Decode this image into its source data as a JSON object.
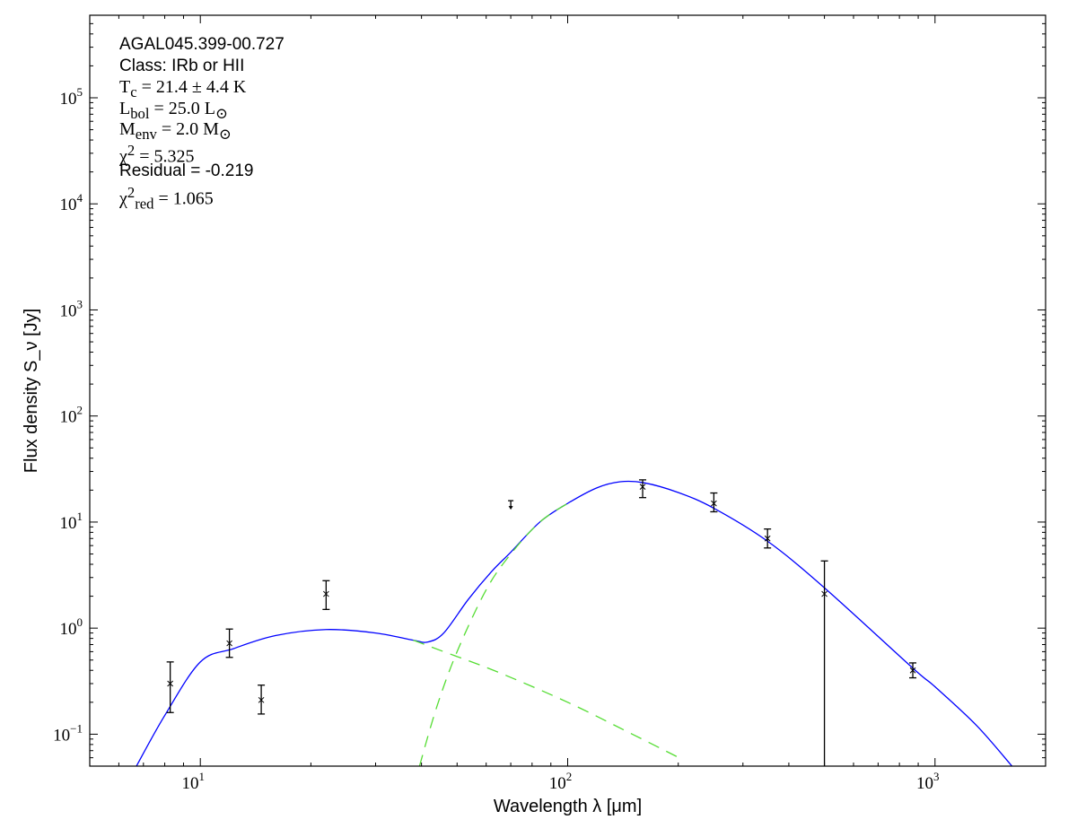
{
  "chart_data": {
    "type": "scatter",
    "xlabel": "Wavelength λ [μm]",
    "ylabel": "Flux density S_ν [Jy]",
    "xscale": "log",
    "yscale": "log",
    "xlim": [
      5,
      2000
    ],
    "ylim": [
      0.05,
      600000
    ],
    "x_ticks": [
      {
        "value": 10,
        "label": "10",
        "exp": "1"
      },
      {
        "value": 100,
        "label": "10",
        "exp": "2"
      },
      {
        "value": 1000,
        "label": "10",
        "exp": "3"
      }
    ],
    "y_ticks": [
      {
        "value": 0.1,
        "label": "10",
        "exp": "−1"
      },
      {
        "value": 1,
        "label": "10",
        "exp": "0"
      },
      {
        "value": 10,
        "label": "10",
        "exp": "1"
      },
      {
        "value": 100,
        "label": "10",
        "exp": "2"
      },
      {
        "value": 1000,
        "label": "10",
        "exp": "3"
      },
      {
        "value": 10000,
        "label": "10",
        "exp": "4"
      },
      {
        "value": 100000,
        "label": "10",
        "exp": "5"
      }
    ],
    "grid": false,
    "annotations": [
      {
        "text": "AGAL045.399-00.727",
        "style": "plain"
      },
      {
        "text": "Class: IRb or HII",
        "style": "plain"
      },
      {
        "text": "T<sub>c</sub> = 21.4 ± 4.4 K",
        "style": "math"
      },
      {
        "text": "L<sub>bol</sub> = 25.0 L<sub>⊙</sub>",
        "style": "math"
      },
      {
        "text": "M<sub>env</sub> = 2.0 M<sub>⊙</sub>",
        "style": "math"
      },
      {
        "text": "χ<sup>2</sup> = 5.325",
        "style": "math"
      },
      {
        "text": "Residual = -0.219",
        "style": "plain"
      },
      {
        "text": "χ<sup>2</sup><sub>red</sub> = 1.065",
        "style": "math"
      }
    ],
    "points": [
      {
        "x": 8.28,
        "y": 0.3,
        "lo": 0.16,
        "hi": 0.48
      },
      {
        "x": 12,
        "y": 0.72,
        "lo": 0.53,
        "hi": 0.98
      },
      {
        "x": 14.65,
        "y": 0.21,
        "lo": 0.155,
        "hi": 0.29
      },
      {
        "x": 22,
        "y": 2.1,
        "lo": 1.5,
        "hi": 2.8
      },
      {
        "x": 160,
        "y": 21.5,
        "lo": 17,
        "hi": 25
      },
      {
        "x": 250,
        "y": 15,
        "lo": 12.5,
        "hi": 18.8
      },
      {
        "x": 350,
        "y": 7,
        "lo": 5.7,
        "hi": 8.6
      },
      {
        "x": 500,
        "y": 2.1,
        "lo": 0.001,
        "hi": 4.3
      },
      {
        "x": 870,
        "y": 0.4,
        "lo": 0.34,
        "hi": 0.47
      }
    ],
    "upper_limits": [
      {
        "x": 70,
        "y": 15
      }
    ],
    "series": [
      {
        "style": "solid",
        "color": "#0000ff",
        "x": [
          6.7,
          8,
          10,
          12.3,
          16,
          22,
          30,
          38,
          41.6,
          46,
          53.6,
          62,
          70,
          84,
          100,
          120,
          139,
          161,
          200,
          250,
          350,
          500,
          870,
          1000,
          1300,
          1620
        ],
        "y": [
          0.05,
          0.15,
          0.48,
          0.64,
          0.85,
          0.97,
          0.9,
          0.77,
          0.74,
          0.9,
          1.86,
          3.4,
          5.2,
          10,
          15,
          21,
          24,
          23.5,
          19,
          13.5,
          6.6,
          2.4,
          0.42,
          0.28,
          0.12,
          0.05
        ]
      },
      {
        "style": "dashed",
        "color": "#55dd33",
        "x": [
          38,
          46,
          64,
          100,
          150,
          203
        ],
        "y": [
          0.77,
          0.6,
          0.39,
          0.2,
          0.1,
          0.059
        ]
      },
      {
        "style": "dashed",
        "color": "#55dd33",
        "x": [
          39.5,
          44,
          50,
          60,
          70,
          84,
          100
        ],
        "y": [
          0.05,
          0.18,
          0.6,
          2.3,
          5.0,
          10,
          15
        ]
      }
    ]
  }
}
